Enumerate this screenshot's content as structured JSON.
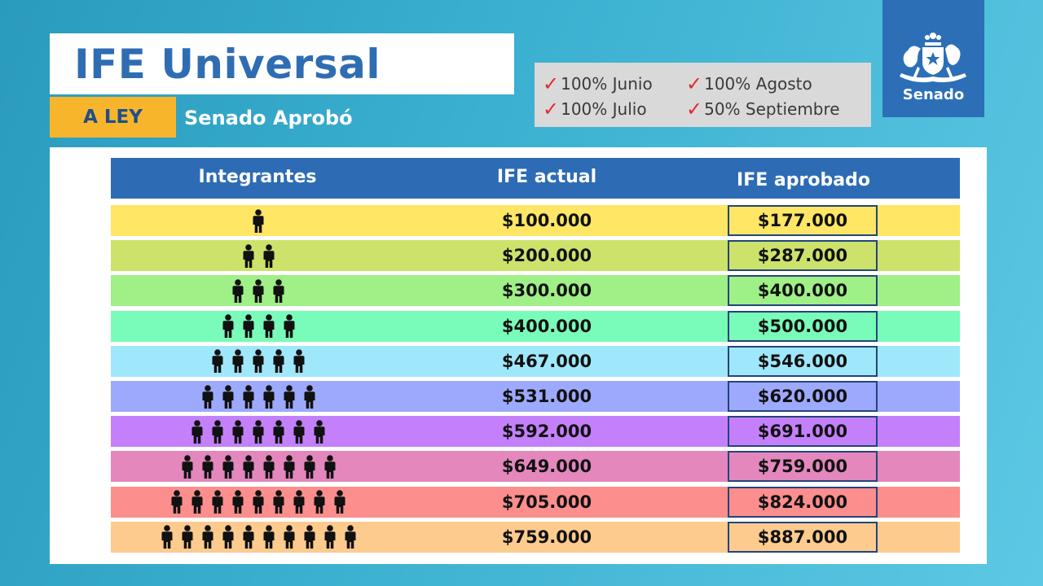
{
  "header": {
    "title": "IFE Universal",
    "badge": "A LEY",
    "subtitle": "Senado Aprobó"
  },
  "months": {
    "check_icon": "check-mark-icon",
    "check_color": "#e32b2b",
    "items": [
      "100% Junio",
      "100% Agosto",
      "100% Julio",
      "50% Septiembre"
    ]
  },
  "logo": {
    "label": "Senado",
    "icon": "coat-of-arms-icon",
    "background": "#2c6fb7"
  },
  "table": {
    "columns": [
      "Integrantes",
      "IFE actual",
      "IFE aprobado"
    ],
    "header_color": "#2d6cb5",
    "person_icon": "person-icon",
    "rows": [
      {
        "integrantes": 1,
        "actual": "$100.000",
        "aprobado": "$177.000",
        "color": "#ffe664"
      },
      {
        "integrantes": 2,
        "actual": "$200.000",
        "aprobado": "$287.000",
        "color": "#cde26b"
      },
      {
        "integrantes": 3,
        "actual": "$300.000",
        "aprobado": "$400.000",
        "color": "#9ff087"
      },
      {
        "integrantes": 4,
        "actual": "$400.000",
        "aprobado": "$500.000",
        "color": "#79fcb9"
      },
      {
        "integrantes": 5,
        "actual": "$467.000",
        "aprobado": "$546.000",
        "color": "#9fe8fc"
      },
      {
        "integrantes": 6,
        "actual": "$531.000",
        "aprobado": "$620.000",
        "color": "#9da9fc"
      },
      {
        "integrantes": 7,
        "actual": "$592.000",
        "aprobado": "$691.000",
        "color": "#c480fb"
      },
      {
        "integrantes": 8,
        "actual": "$649.000",
        "aprobado": "$759.000",
        "color": "#e387bd"
      },
      {
        "integrantes": 9,
        "actual": "$705.000",
        "aprobado": "$824.000",
        "color": "#fc8e8e"
      },
      {
        "integrantes": 10,
        "actual": "$759.000",
        "aprobado": "$887.000",
        "color": "#fdcb8e"
      }
    ]
  }
}
